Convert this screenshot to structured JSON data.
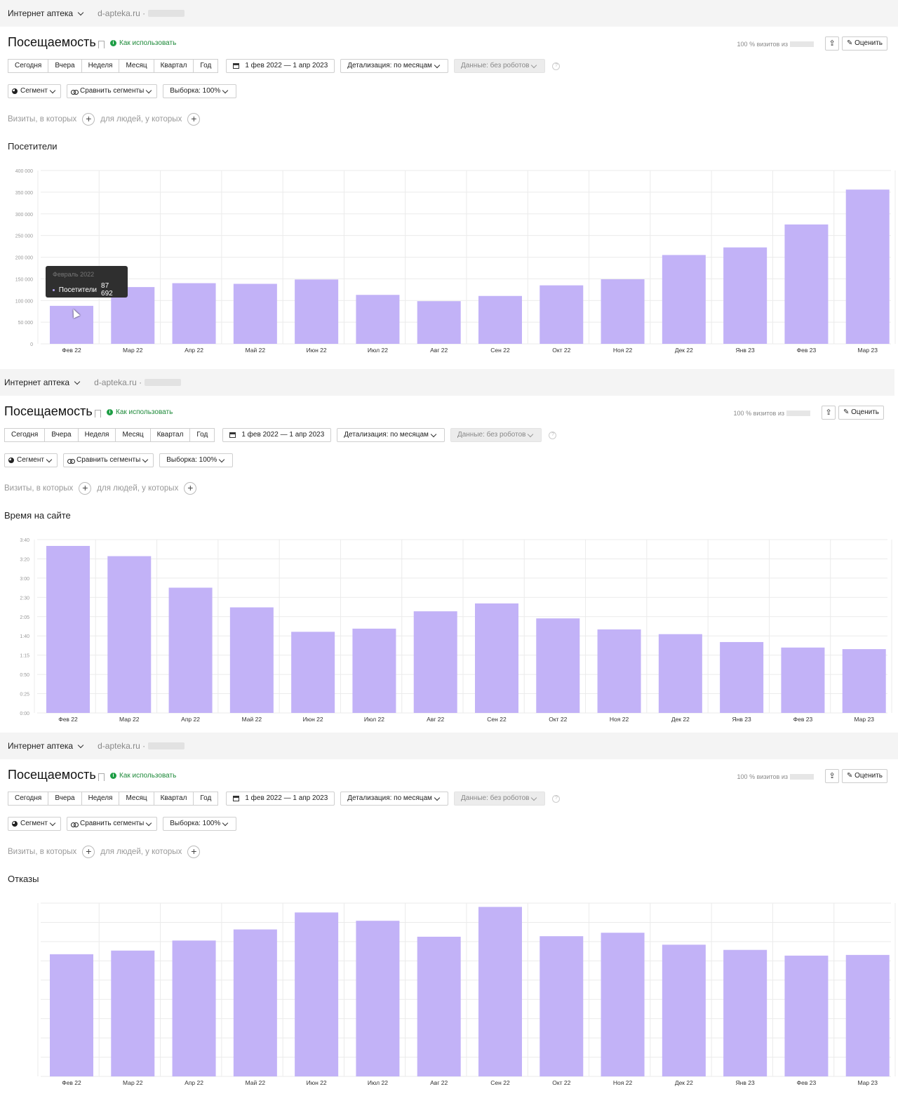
{
  "header": {
    "app_name": "Интернет аптека",
    "site": "d-apteka.ru",
    "separator": "·",
    "title": "Посещаемость",
    "howto_label": "Как использовать",
    "visits_info": "100 % визитов из",
    "rate_label": "Оценить"
  },
  "periods": [
    "Сегодня",
    "Вчера",
    "Неделя",
    "Месяц",
    "Квартал",
    "Год"
  ],
  "date_range": "1 фев 2022 — 1 апр 2023",
  "detail_label": "Детализация: по месяцам",
  "robots_label": "Данные: без роботов",
  "segment_label": "Сегмент",
  "compare_label": "Сравнить сегменты",
  "sample_label": "Выборка: 100%",
  "filters": {
    "visits_label": "Визиты, в которых",
    "people_label": "для людей, у которых"
  },
  "tooltip": {
    "date": "Февраль 2022",
    "series": "Посетители",
    "value": "87 692"
  },
  "colors": {
    "bar": "#c2b2f7",
    "grid": "#ebebeb",
    "tooltip_bg": "#2f2f2f",
    "green": "#1e8a3a"
  },
  "chart_data": [
    {
      "type": "bar",
      "title": "Посетители",
      "categories": [
        "Фев 22",
        "Мар 22",
        "Апр 22",
        "Май 22",
        "Июн 22",
        "Июл 22",
        "Авг 22",
        "Сен 22",
        "Окт 22",
        "Ноя 22",
        "Дек 22",
        "Янв 23",
        "Фев 23",
        "Мар 23"
      ],
      "values": [
        87692,
        131000,
        140000,
        138500,
        148500,
        113000,
        98500,
        110500,
        135000,
        149000,
        205000,
        222500,
        275500,
        356000
      ],
      "yticks": [
        "400 000",
        "350 000",
        "300 000",
        "250 000",
        "200 000",
        "150 000",
        "100 000",
        "50 000",
        "0"
      ],
      "ylim": [
        0,
        400000
      ],
      "grid": true
    },
    {
      "type": "bar",
      "title": "Время на сайте",
      "categories": [
        "Фев 22",
        "Мар 22",
        "Апр 22",
        "Май 22",
        "Июн 22",
        "Июл 22",
        "Авг 22",
        "Сен 22",
        "Окт 22",
        "Ноя 22",
        "Дек 22",
        "Янв 23",
        "Фев 23",
        "Мар 23"
      ],
      "values": [
        212,
        199,
        159,
        134,
        103,
        107,
        129,
        139,
        120,
        106,
        100,
        90,
        83,
        81
      ],
      "yticks": [
        "3:40",
        "3:20",
        "3:00",
        "2:30",
        "2:05",
        "1:40",
        "1:15",
        "0:50",
        "0:25",
        "0:00"
      ],
      "ylim": [
        0,
        220
      ],
      "grid": true
    },
    {
      "type": "bar",
      "title": "Отказы",
      "categories": [
        "Фев 22",
        "Мар 22",
        "Апр 22",
        "Май 22",
        "Июн 22",
        "Июл 22",
        "Авг 22",
        "Сен 22",
        "Окт 22",
        "Ноя 22",
        "Дек 22",
        "Янв 23",
        "Фев 23",
        "Мар 23"
      ],
      "values": [
        70.5,
        72.6,
        78.4,
        84.8,
        94.6,
        89.8,
        80.6,
        97.8,
        80.9,
        82.9,
        76.0,
        73.0,
        69.7,
        70.1
      ],
      "yticks": [
        "",
        "",
        "",
        "",
        "",
        "",
        "",
        "",
        "",
        ""
      ],
      "ylim": [
        0,
        100
      ],
      "grid": true
    }
  ]
}
